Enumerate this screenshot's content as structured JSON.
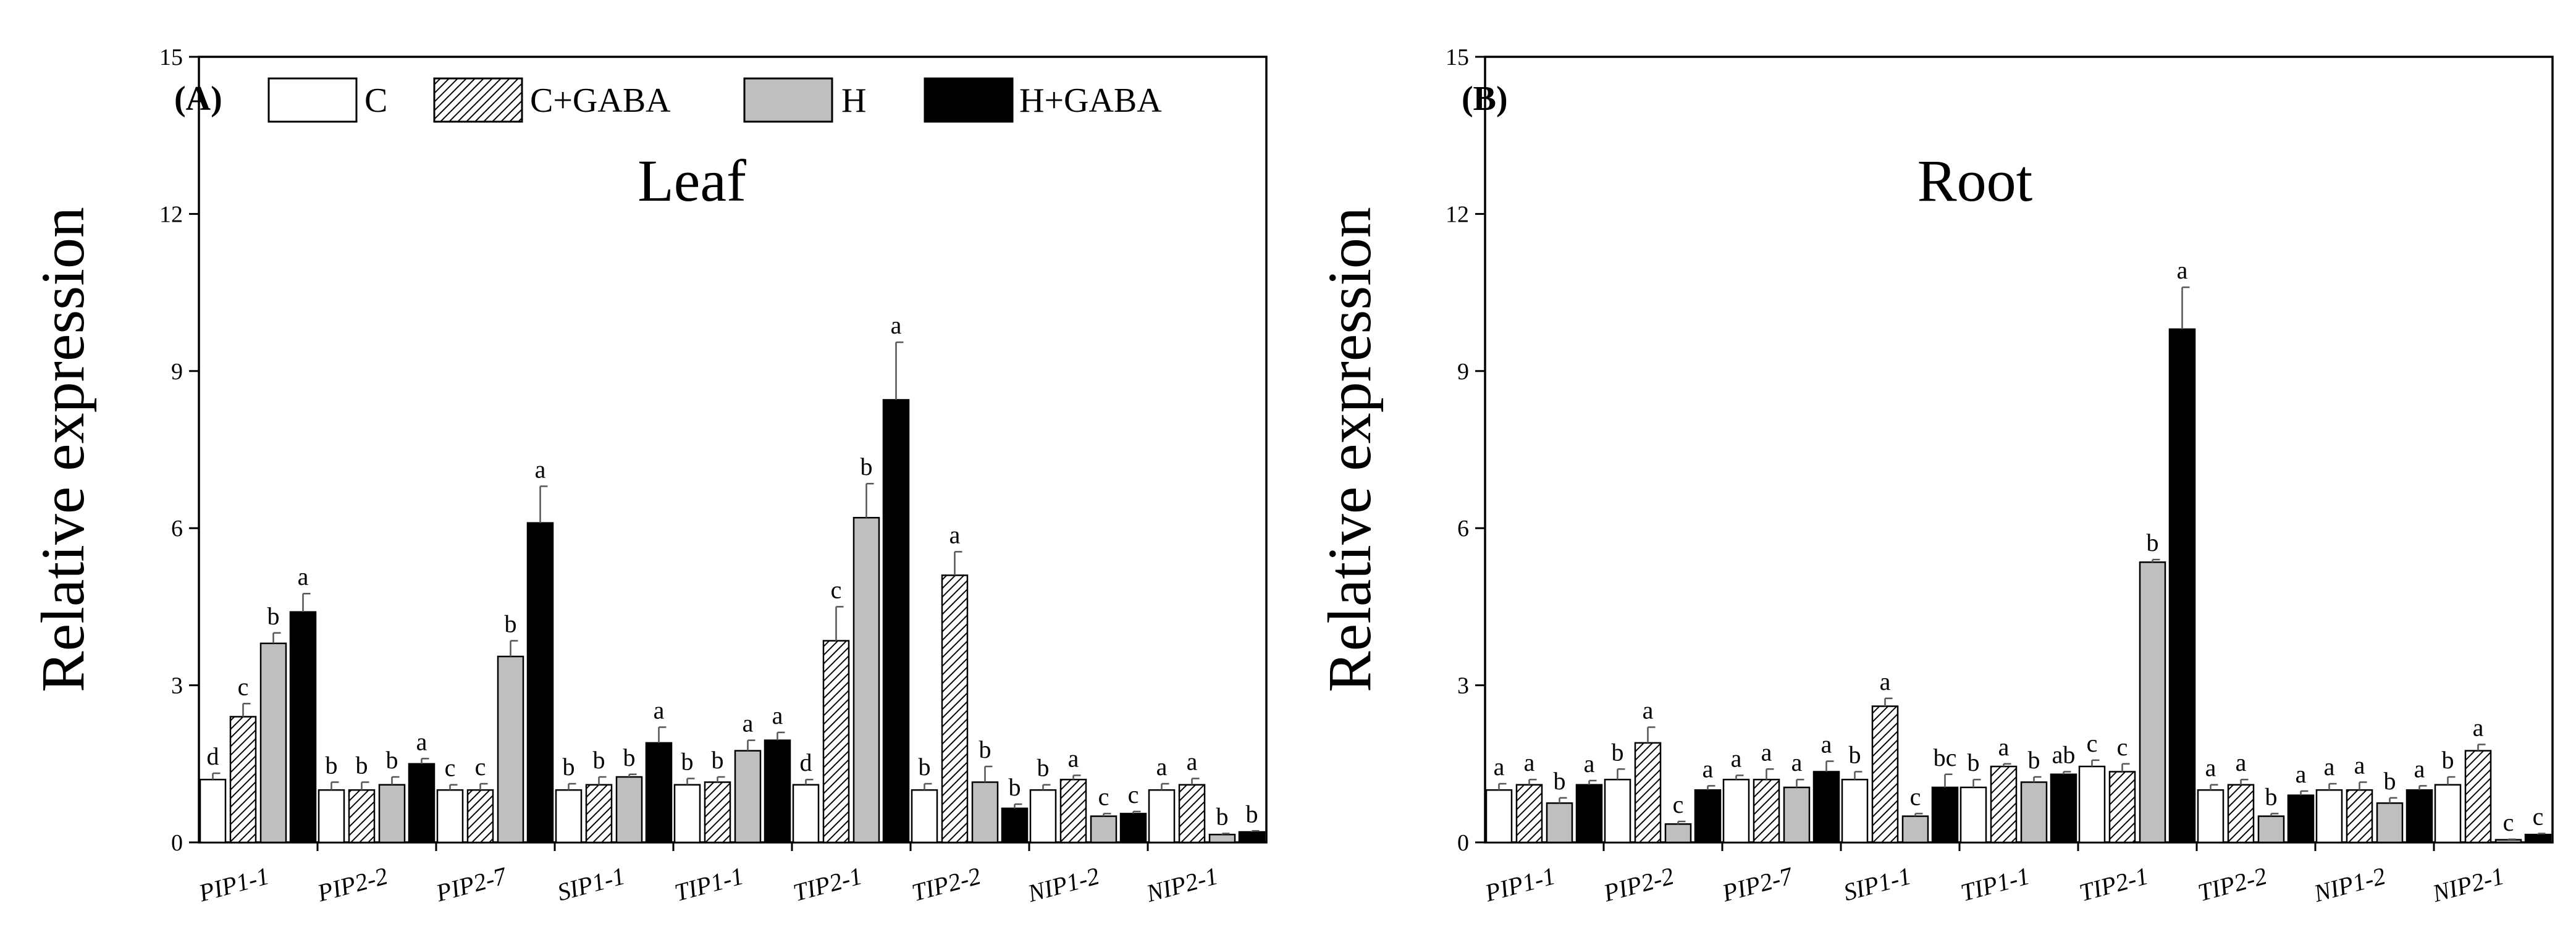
{
  "chart_data": [
    {
      "type": "bar",
      "panel_label": "(A)",
      "title": "Leaf",
      "xlabel": "",
      "ylabel": "Relative expression",
      "ylim": [
        0,
        15
      ],
      "yticks": [
        0,
        3,
        6,
        9,
        12,
        15
      ],
      "yticks_labels": [
        "0",
        "3",
        "6",
        "9",
        "12",
        "15"
      ],
      "grid": false,
      "legend_position": "top-left",
      "categories": [
        "PIP1-1",
        "PIP2-2",
        "PIP2-7",
        "SIP1-1",
        "TIP1-1",
        "TIP2-1",
        "TIP2-2",
        "NIP1-2",
        "NIP2-1"
      ],
      "series": [
        {
          "name": "C",
          "style": "white",
          "values": [
            1.2,
            1.0,
            1.0,
            1.0,
            1.1,
            1.1,
            1.0,
            1.0,
            1.0
          ],
          "errors": [
            0.12,
            0.15,
            0.1,
            0.12,
            0.12,
            0.1,
            0.12,
            0.1,
            0.12
          ],
          "letters": [
            "d",
            "b",
            "c",
            "b",
            "b",
            "d",
            "b",
            "b",
            "a"
          ]
        },
        {
          "name": "C+GABA",
          "style": "hatched",
          "values": [
            2.4,
            1.0,
            1.0,
            1.1,
            1.15,
            3.85,
            5.1,
            1.2,
            1.1
          ],
          "errors": [
            0.25,
            0.15,
            0.12,
            0.15,
            0.1,
            0.65,
            0.45,
            0.08,
            0.12
          ],
          "letters": [
            "c",
            "b",
            "c",
            "b",
            "b",
            "c",
            "a",
            "a",
            "a"
          ]
        },
        {
          "name": "H",
          "style": "gray",
          "values": [
            3.8,
            1.1,
            3.55,
            1.25,
            1.75,
            6.2,
            1.15,
            0.5,
            0.15
          ],
          "errors": [
            0.2,
            0.15,
            0.3,
            0.05,
            0.2,
            0.65,
            0.3,
            0.05,
            0.02
          ],
          "letters": [
            "b",
            "b",
            "b",
            "b",
            "a",
            "b",
            "b",
            "c",
            "b"
          ]
        },
        {
          "name": "H+GABA",
          "style": "black",
          "values": [
            4.4,
            1.5,
            6.1,
            1.9,
            1.95,
            8.45,
            0.65,
            0.55,
            0.2
          ],
          "errors": [
            0.35,
            0.1,
            0.7,
            0.3,
            0.15,
            1.1,
            0.08,
            0.04,
            0.02
          ],
          "letters": [
            "a",
            "a",
            "a",
            "a",
            "a",
            "a",
            "b",
            "c",
            "b"
          ]
        }
      ]
    },
    {
      "type": "bar",
      "panel_label": "(B)",
      "title": "Root",
      "xlabel": "",
      "ylabel": "Relative expression",
      "ylim": [
        0,
        15
      ],
      "yticks": [
        0,
        3,
        6,
        9,
        12,
        15
      ],
      "yticks_labels": [
        "0",
        "3",
        "6",
        "9",
        "12",
        "15"
      ],
      "grid": false,
      "categories": [
        "PIP1-1",
        "PIP2-2",
        "PIP2-7",
        "SIP1-1",
        "TIP1-1",
        "TIP2-1",
        "TIP2-2",
        "NIP1-2",
        "NIP2-1"
      ],
      "series": [
        {
          "name": "C",
          "style": "white",
          "values": [
            1.0,
            1.2,
            1.2,
            1.2,
            1.05,
            1.45,
            1.0,
            1.0,
            1.1
          ],
          "errors": [
            0.12,
            0.2,
            0.08,
            0.15,
            0.15,
            0.12,
            0.1,
            0.12,
            0.15
          ],
          "letters": [
            "a",
            "b",
            "a",
            "b",
            "b",
            "c",
            "a",
            "a",
            "b"
          ]
        },
        {
          "name": "C+GABA",
          "style": "hatched",
          "values": [
            1.1,
            1.9,
            1.2,
            2.6,
            1.45,
            1.35,
            1.1,
            1.0,
            1.75
          ],
          "errors": [
            0.1,
            0.3,
            0.2,
            0.15,
            0.05,
            0.15,
            0.1,
            0.15,
            0.12
          ],
          "letters": [
            "a",
            "a",
            "a",
            "a",
            "a",
            "c",
            "a",
            "a",
            "a"
          ]
        },
        {
          "name": "H",
          "style": "gray",
          "values": [
            0.75,
            0.35,
            1.05,
            0.5,
            1.15,
            5.35,
            0.5,
            0.75,
            0.05
          ],
          "errors": [
            0.1,
            0.05,
            0.15,
            0.05,
            0.1,
            0.05,
            0.05,
            0.1,
            0.01
          ],
          "letters": [
            "b",
            "c",
            "a",
            "c",
            "b",
            "b",
            "b",
            "b",
            "c"
          ]
        },
        {
          "name": "H+GABA",
          "style": "black",
          "values": [
            1.1,
            1.0,
            1.35,
            1.05,
            1.3,
            9.8,
            0.9,
            1.0,
            0.15
          ],
          "errors": [
            0.08,
            0.08,
            0.2,
            0.25,
            0.05,
            0.8,
            0.08,
            0.08,
            0.02
          ],
          "letters": [
            "a",
            "a",
            "a",
            "bc",
            "ab",
            "a",
            "a",
            "a",
            "c"
          ]
        }
      ]
    }
  ]
}
